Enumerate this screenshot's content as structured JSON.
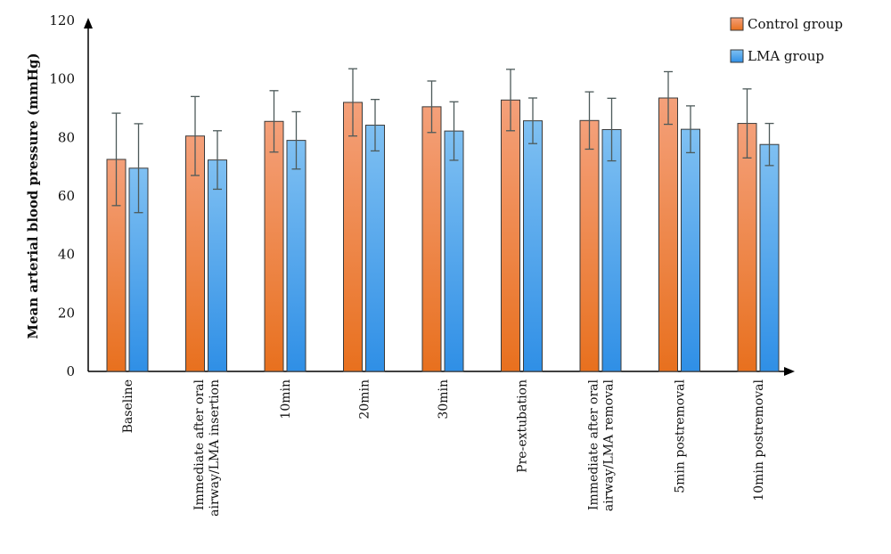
{
  "chart_data": {
    "type": "bar",
    "title": "",
    "xlabel": "",
    "ylabel": "Mean arterial blood pressure (mmHg)",
    "ylim": [
      0,
      120
    ],
    "yticks": [
      0,
      20,
      40,
      60,
      80,
      100,
      120
    ],
    "grid": false,
    "legend_position": "top-right",
    "categories": [
      [
        "Baseline"
      ],
      [
        "Immediate after oral",
        "airway/LMA insertion"
      ],
      [
        "10min"
      ],
      [
        "20min"
      ],
      [
        "30min"
      ],
      [
        "Pre-extubation"
      ],
      [
        "Immediate after oral",
        "airway/LMA removal"
      ],
      [
        "5min postremoval"
      ],
      [
        "10min postremoval"
      ]
    ],
    "series": [
      {
        "name": "Control group",
        "color_top": "#f4a07a",
        "color_bottom": "#e8701e",
        "values": [
          72.5,
          80.5,
          85.5,
          92,
          90.5,
          92.8,
          85.8,
          93.5,
          84.8
        ],
        "error": [
          15.8,
          13.5,
          10.5,
          11.5,
          8.8,
          10.5,
          9.8,
          9,
          11.8
        ]
      },
      {
        "name": "LMA group",
        "color_top": "#7fc0f2",
        "color_bottom": "#2f8fe6",
        "values": [
          69.5,
          72.3,
          79,
          84.2,
          82.2,
          85.7,
          82.7,
          82.8,
          77.6
        ],
        "error": [
          15.2,
          10,
          9.8,
          8.8,
          10,
          7.8,
          10.7,
          8,
          7.2
        ]
      }
    ]
  }
}
